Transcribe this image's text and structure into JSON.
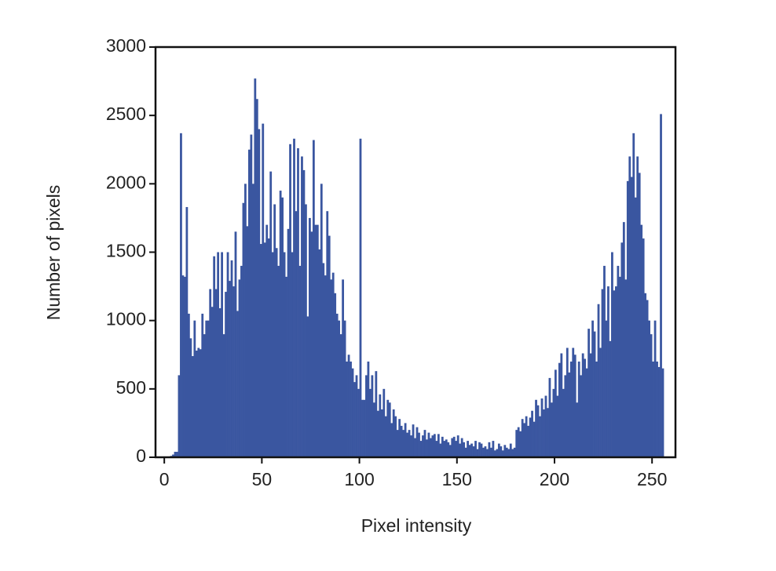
{
  "chart_data": {
    "type": "histogram",
    "xlabel": "Pixel intensity",
    "ylabel": "Number of pixels",
    "color": "#3a56a0",
    "bins": [
      0,
      1,
      2,
      3,
      4,
      5,
      6,
      7,
      8,
      9,
      10,
      11,
      12,
      13,
      14,
      15,
      16,
      17,
      18,
      19,
      20,
      21,
      22,
      23,
      24,
      25,
      26,
      27,
      28,
      29,
      30,
      31,
      32,
      33,
      34,
      35,
      36,
      37,
      38,
      39,
      40,
      41,
      42,
      43,
      44,
      45,
      46,
      47,
      48,
      49,
      50,
      51,
      52,
      53,
      54,
      55,
      56,
      57,
      58,
      59,
      60,
      61,
      62,
      63,
      64,
      65,
      66,
      67,
      68,
      69,
      70,
      71,
      72,
      73,
      74,
      75,
      76,
      77,
      78,
      79,
      80,
      81,
      82,
      83,
      84,
      85,
      86,
      87,
      88,
      89,
      90,
      91,
      92,
      93,
      94,
      95,
      96,
      97,
      98,
      99,
      100,
      101,
      102,
      103,
      104,
      105,
      106,
      107,
      108,
      109,
      110,
      111,
      112,
      113,
      114,
      115,
      116,
      117,
      118,
      119,
      120,
      121,
      122,
      123,
      124,
      125,
      126,
      127,
      128,
      129,
      130,
      131,
      132,
      133,
      134,
      135,
      136,
      137,
      138,
      139,
      140,
      141,
      142,
      143,
      144,
      145,
      146,
      147,
      148,
      149,
      150,
      151,
      152,
      153,
      154,
      155,
      156,
      157,
      158,
      159,
      160,
      161,
      162,
      163,
      164,
      165,
      166,
      167,
      168,
      169,
      170,
      171,
      172,
      173,
      174,
      175,
      176,
      177,
      178,
      179,
      180,
      181,
      182,
      183,
      184,
      185,
      186,
      187,
      188,
      189,
      190,
      191,
      192,
      193,
      194,
      195,
      196,
      197,
      198,
      199,
      200,
      201,
      202,
      203,
      204,
      205,
      206,
      207,
      208,
      209,
      210,
      211,
      212,
      213,
      214,
      215,
      216,
      217,
      218,
      219,
      220,
      221,
      222,
      223,
      224,
      225,
      226,
      227,
      228,
      229,
      230,
      231,
      232,
      233,
      234,
      235,
      236,
      237,
      238,
      239,
      240,
      241,
      242,
      243,
      244,
      245,
      246,
      247,
      248,
      249,
      250,
      251,
      252,
      253,
      254,
      255,
      256
    ],
    "values": [
      0,
      0,
      0,
      10,
      20,
      40,
      40,
      600,
      2370,
      1330,
      1320,
      1830,
      1050,
      870,
      740,
      1000,
      780,
      800,
      790,
      1050,
      900,
      1000,
      1000,
      1230,
      1100,
      1470,
      1230,
      1500,
      1090,
      1500,
      900,
      1210,
      1500,
      1290,
      1440,
      1250,
      1650,
      1070,
      1300,
      1400,
      1860,
      2000,
      1690,
      2250,
      2360,
      2000,
      2770,
      2620,
      2400,
      1560,
      2440,
      1570,
      1700,
      1600,
      2090,
      1500,
      1850,
      1530,
      1400,
      1950,
      1900,
      1500,
      1320,
      1670,
      2290,
      1500,
      2330,
      1800,
      2260,
      1400,
      2200,
      2100,
      1850,
      1030,
      1750,
      1650,
      2320,
      1700,
      1700,
      1520,
      2000,
      1420,
      1330,
      1800,
      1620,
      1300,
      1350,
      1200,
      1050,
      1000,
      900,
      1300,
      1000,
      700,
      750,
      700,
      650,
      550,
      600,
      500,
      2330,
      420,
      420,
      600,
      700,
      500,
      600,
      400,
      630,
      340,
      460,
      350,
      500,
      300,
      420,
      400,
      250,
      350,
      300,
      200,
      280,
      230,
      200,
      250,
      180,
      200,
      160,
      240,
      140,
      220,
      180,
      120,
      160,
      200,
      130,
      180,
      140,
      160,
      170,
      120,
      170,
      100,
      150,
      120,
      130,
      110,
      90,
      140,
      150,
      120,
      160,
      100,
      140,
      110,
      70,
      120,
      90,
      100,
      80,
      120,
      60,
      110,
      100,
      70,
      80,
      60,
      110,
      70,
      120,
      50,
      60,
      100,
      80,
      50,
      90,
      70,
      60,
      100,
      60,
      70,
      200,
      220,
      190,
      280,
      250,
      300,
      230,
      290,
      340,
      260,
      420,
      380,
      300,
      430,
      350,
      450,
      360,
      580,
      400,
      500,
      640,
      450,
      690,
      760,
      500,
      600,
      800,
      620,
      700,
      800,
      750,
      400,
      700,
      600,
      760,
      720,
      650,
      940,
      760,
      1000,
      920,
      700,
      1120,
      800,
      1230,
      1400,
      1000,
      1250,
      850,
      1500,
      1220,
      1250,
      1400,
      1320,
      1570,
      1720,
      1300,
      2020,
      2200,
      2050,
      2370,
      1900,
      2200,
      2080,
      1700,
      1600,
      1200,
      1150,
      1000,
      900,
      700,
      1000,
      700,
      660,
      2510,
      650
    ],
    "xlim": [
      -4.5,
      262
    ],
    "ylim": [
      0,
      3000
    ],
    "xticks": [
      0,
      50,
      100,
      150,
      200,
      250
    ],
    "yticks": [
      0,
      500,
      1000,
      1500,
      2000,
      2500,
      3000
    ]
  }
}
